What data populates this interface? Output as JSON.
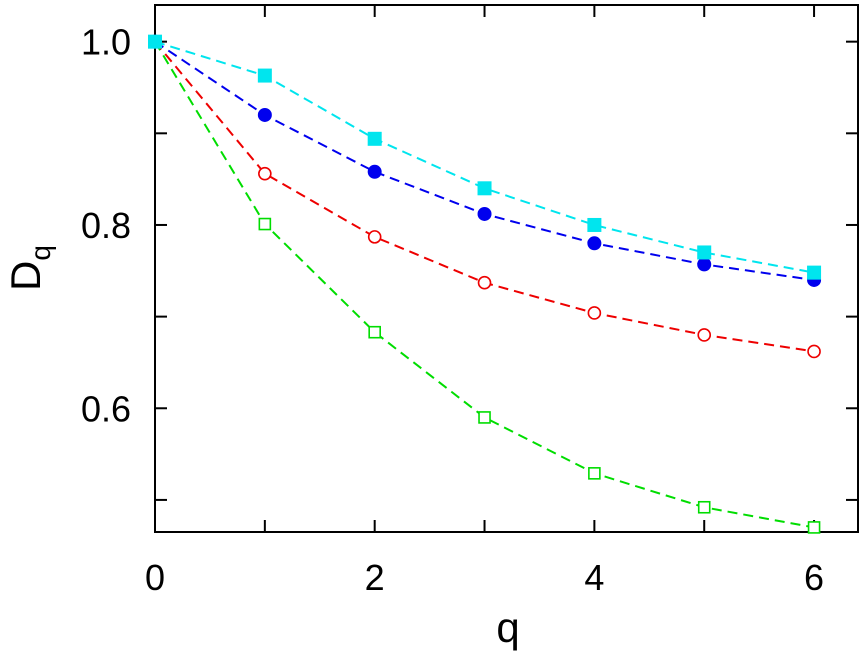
{
  "chart_data": {
    "type": "line",
    "xlabel": "q",
    "ylabel": "D",
    "ylabel_subscript": "q",
    "xlim": [
      0,
      6.4
    ],
    "ylim": [
      0.465,
      1.04
    ],
    "x_ticks": [
      0,
      1,
      2,
      3,
      4,
      5,
      6
    ],
    "x_tick_labels": [
      "0",
      "2",
      "4",
      "6"
    ],
    "x_tick_label_values": [
      0,
      2,
      4,
      6
    ],
    "y_ticks": [
      0.5,
      0.6,
      0.7,
      0.8,
      0.9,
      1.0
    ],
    "y_tick_labels": [
      "0.6",
      "0.8",
      "1.0"
    ],
    "y_tick_label_values": [
      0.6,
      0.8,
      1.0
    ],
    "grid": false,
    "x": [
      0,
      1,
      2,
      3,
      4,
      5,
      6
    ],
    "series": [
      {
        "color": "#00e5ee",
        "marker": "filled-square",
        "values": [
          1.0,
          0.963,
          0.894,
          0.84,
          0.8,
          0.77,
          0.748
        ]
      },
      {
        "color": "#0000ee",
        "marker": "filled-circle",
        "values": [
          1.0,
          0.92,
          0.858,
          0.812,
          0.78,
          0.757,
          0.74
        ]
      },
      {
        "color": "#ee0000",
        "marker": "open-circle",
        "values": [
          1.0,
          0.856,
          0.787,
          0.737,
          0.704,
          0.68,
          0.662
        ]
      },
      {
        "color": "#00dd00",
        "marker": "open-square",
        "values": [
          1.0,
          0.801,
          0.683,
          0.59,
          0.529,
          0.492,
          0.47
        ]
      }
    ]
  }
}
